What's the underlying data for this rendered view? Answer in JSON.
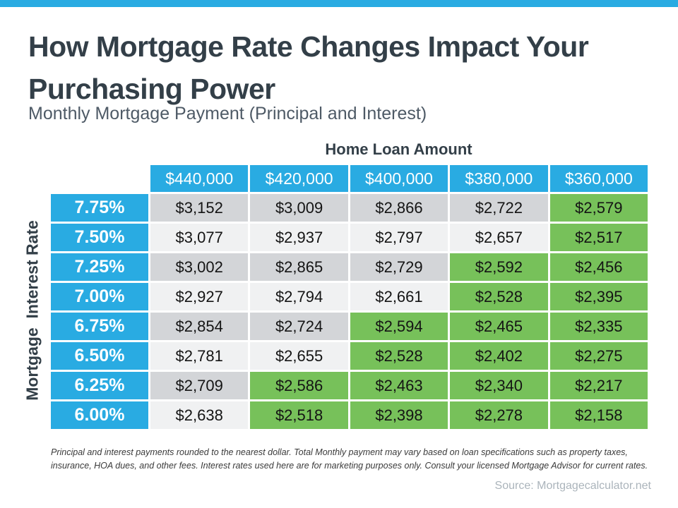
{
  "page": {
    "title": "How Mortgage Rate Changes Impact Your Purchasing Power",
    "title_line1": "How Mortgage Rate Changes Impact Your",
    "title_line2": "Purchasing Power",
    "subtitle": "Monthly Mortgage Payment (Principal and Interest)",
    "footnote": "Principal and interest payments rounded to the nearest dollar. Total Monthly payment may vary based on loan specifications such as property taxes, insurance, HOA dues, and other fees. Interest rates used here are for marketing purposes only. Consult your licensed Mortgage Advisor for current rates.",
    "source": "Source: Mortgagecalculator.net"
  },
  "chart_data": {
    "type": "table",
    "column_axis_title": "Home Loan Amount",
    "row_axis_title": "Mortgage  Interest Rate",
    "columns": [
      "$440,000",
      "$420,000",
      "$400,000",
      "$380,000",
      "$360,000"
    ],
    "rows": [
      {
        "rate": "7.75%",
        "values": [
          "$3,152",
          "$3,009",
          "$2,866",
          "$2,722",
          "$2,579"
        ],
        "green": [
          false,
          false,
          false,
          false,
          true
        ],
        "shade": "gray"
      },
      {
        "rate": "7.50%",
        "values": [
          "$3,077",
          "$2,937",
          "$2,797",
          "$2,657",
          "$2,517"
        ],
        "green": [
          false,
          false,
          false,
          false,
          true
        ],
        "shade": "light"
      },
      {
        "rate": "7.25%",
        "values": [
          "$3,002",
          "$2,865",
          "$2,729",
          "$2,592",
          "$2,456"
        ],
        "green": [
          false,
          false,
          false,
          true,
          true
        ],
        "shade": "gray"
      },
      {
        "rate": "7.00%",
        "values": [
          "$2,927",
          "$2,794",
          "$2,661",
          "$2,528",
          "$2,395"
        ],
        "green": [
          false,
          false,
          false,
          true,
          true
        ],
        "shade": "light"
      },
      {
        "rate": "6.75%",
        "values": [
          "$2,854",
          "$2,724",
          "$2,594",
          "$2,465",
          "$2,335"
        ],
        "green": [
          false,
          false,
          true,
          true,
          true
        ],
        "shade": "gray"
      },
      {
        "rate": "6.50%",
        "values": [
          "$2,781",
          "$2,655",
          "$2,528",
          "$2,402",
          "$2,275"
        ],
        "green": [
          false,
          false,
          true,
          true,
          true
        ],
        "shade": "light"
      },
      {
        "rate": "6.25%",
        "values": [
          "$2,709",
          "$2,586",
          "$2,463",
          "$2,340",
          "$2,217"
        ],
        "green": [
          false,
          true,
          true,
          true,
          true
        ],
        "shade": "gray"
      },
      {
        "rate": "6.00%",
        "values": [
          "$2,638",
          "$2,518",
          "$2,398",
          "$2,278",
          "$2,158"
        ],
        "green": [
          false,
          true,
          true,
          true,
          true
        ],
        "shade": "light"
      }
    ]
  },
  "colors": {
    "accent_blue": "#29ABE2",
    "highlight_green": "#77C15A",
    "row_gray": "#D3D5D8",
    "row_light": "#F0F1F2",
    "heading_text": "#333F48",
    "source_text": "#ABB4BB"
  }
}
